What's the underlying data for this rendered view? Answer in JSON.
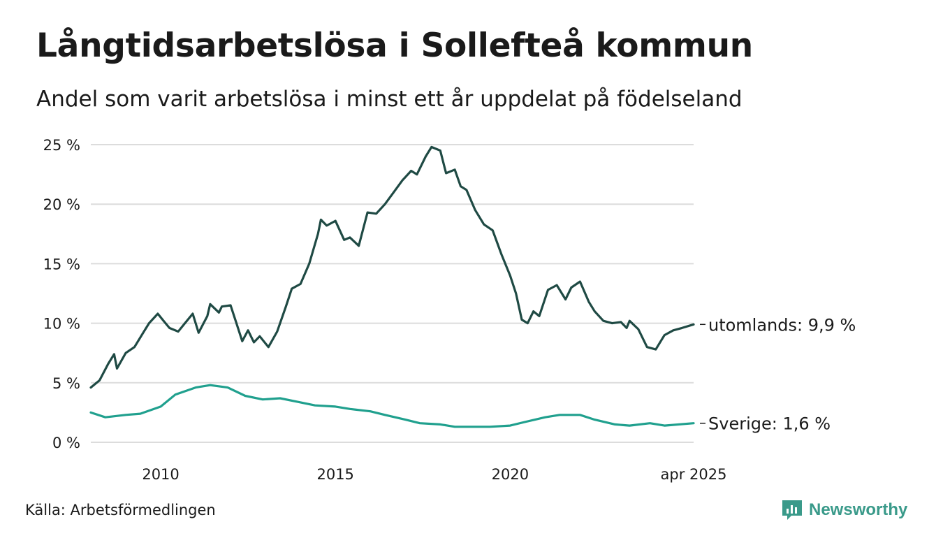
{
  "title": "Långtidsarbetslösa i Sollefteå kommun",
  "subtitle": "Andel som varit arbetslösa i minst ett år uppdelat på födelseland",
  "source": "Källa: Arbetsförmedlingen",
  "brand": "Newsworthy",
  "colors": {
    "utomlands": "#1f4a44",
    "sverige": "#20a08e",
    "grid": "#dcdcdc",
    "brand": "#3a9a8a"
  },
  "chart_data": {
    "type": "line",
    "title": "Långtidsarbetslösa i Sollefteå kommun",
    "xlabel": "",
    "ylabel": "",
    "x_range": [
      "2008-01",
      "2025-04"
    ],
    "ylim": [
      0,
      25
    ],
    "y_ticks": [
      0,
      5,
      10,
      15,
      20,
      25
    ],
    "y_tick_labels": [
      "0 %",
      "5 %",
      "10 %",
      "15 %",
      "20 %",
      "25 %"
    ],
    "x_ticks": [
      "2010-01",
      "2015-01",
      "2020-01",
      "2025-04"
    ],
    "x_tick_labels": [
      "2010",
      "2015",
      "2020",
      "apr 2025"
    ],
    "grid": "horizontal",
    "series": [
      {
        "name": "utomlands",
        "end_label": "utomlands: 9,9 %",
        "points": [
          [
            "2008-01",
            4.6
          ],
          [
            "2008-04",
            5.2
          ],
          [
            "2008-07",
            6.6
          ],
          [
            "2008-09",
            7.4
          ],
          [
            "2008-10",
            6.2
          ],
          [
            "2009-01",
            7.5
          ],
          [
            "2009-04",
            8.0
          ],
          [
            "2009-07",
            9.2
          ],
          [
            "2009-09",
            10.0
          ],
          [
            "2009-12",
            10.8
          ],
          [
            "2010-02",
            10.2
          ],
          [
            "2010-04",
            9.6
          ],
          [
            "2010-07",
            9.3
          ],
          [
            "2010-09",
            9.9
          ],
          [
            "2010-12",
            10.8
          ],
          [
            "2011-02",
            9.2
          ],
          [
            "2011-05",
            10.6
          ],
          [
            "2011-06",
            11.6
          ],
          [
            "2011-09",
            10.9
          ],
          [
            "2011-10",
            11.4
          ],
          [
            "2012-01",
            11.5
          ],
          [
            "2012-03",
            10.0
          ],
          [
            "2012-05",
            8.5
          ],
          [
            "2012-07",
            9.4
          ],
          [
            "2012-09",
            8.4
          ],
          [
            "2012-11",
            8.9
          ],
          [
            "2013-02",
            8.0
          ],
          [
            "2013-05",
            9.3
          ],
          [
            "2013-08",
            11.4
          ],
          [
            "2013-10",
            12.9
          ],
          [
            "2014-01",
            13.3
          ],
          [
            "2014-04",
            15.0
          ],
          [
            "2014-07",
            17.5
          ],
          [
            "2014-08",
            18.7
          ],
          [
            "2014-10",
            18.2
          ],
          [
            "2015-01",
            18.6
          ],
          [
            "2015-04",
            17.0
          ],
          [
            "2015-06",
            17.2
          ],
          [
            "2015-09",
            16.5
          ],
          [
            "2015-12",
            19.3
          ],
          [
            "2016-03",
            19.2
          ],
          [
            "2016-06",
            20.0
          ],
          [
            "2016-09",
            21.0
          ],
          [
            "2016-12",
            22.0
          ],
          [
            "2017-03",
            22.8
          ],
          [
            "2017-05",
            22.5
          ],
          [
            "2017-08",
            24.0
          ],
          [
            "2017-10",
            24.8
          ],
          [
            "2018-01",
            24.5
          ],
          [
            "2018-03",
            22.6
          ],
          [
            "2018-06",
            22.9
          ],
          [
            "2018-08",
            21.5
          ],
          [
            "2018-10",
            21.2
          ],
          [
            "2019-01",
            19.5
          ],
          [
            "2019-04",
            18.3
          ],
          [
            "2019-07",
            17.8
          ],
          [
            "2019-10",
            15.8
          ],
          [
            "2020-01",
            14.0
          ],
          [
            "2020-03",
            12.5
          ],
          [
            "2020-05",
            10.3
          ],
          [
            "2020-07",
            10.0
          ],
          [
            "2020-09",
            11.0
          ],
          [
            "2020-11",
            10.6
          ],
          [
            "2021-02",
            12.8
          ],
          [
            "2021-05",
            13.2
          ],
          [
            "2021-08",
            12.0
          ],
          [
            "2021-10",
            13.0
          ],
          [
            "2022-01",
            13.5
          ],
          [
            "2022-04",
            11.8
          ],
          [
            "2022-06",
            11.0
          ],
          [
            "2022-09",
            10.2
          ],
          [
            "2022-12",
            10.0
          ],
          [
            "2023-03",
            10.1
          ],
          [
            "2023-05",
            9.6
          ],
          [
            "2023-06",
            10.2
          ],
          [
            "2023-09",
            9.5
          ],
          [
            "2023-12",
            8.0
          ],
          [
            "2024-03",
            7.8
          ],
          [
            "2024-06",
            9.0
          ],
          [
            "2024-09",
            9.4
          ],
          [
            "2024-12",
            9.6
          ],
          [
            "2025-04",
            9.9
          ]
        ]
      },
      {
        "name": "Sverige",
        "end_label": "Sverige: 1,6 %",
        "points": [
          [
            "2008-01",
            2.5
          ],
          [
            "2008-06",
            2.1
          ],
          [
            "2009-01",
            2.3
          ],
          [
            "2009-06",
            2.4
          ],
          [
            "2010-01",
            3.0
          ],
          [
            "2010-06",
            4.0
          ],
          [
            "2011-01",
            4.6
          ],
          [
            "2011-06",
            4.8
          ],
          [
            "2011-12",
            4.6
          ],
          [
            "2012-06",
            3.9
          ],
          [
            "2012-12",
            3.6
          ],
          [
            "2013-06",
            3.7
          ],
          [
            "2013-12",
            3.4
          ],
          [
            "2014-06",
            3.1
          ],
          [
            "2015-01",
            3.0
          ],
          [
            "2015-06",
            2.8
          ],
          [
            "2016-01",
            2.6
          ],
          [
            "2016-06",
            2.3
          ],
          [
            "2017-01",
            1.9
          ],
          [
            "2017-06",
            1.6
          ],
          [
            "2018-01",
            1.5
          ],
          [
            "2018-06",
            1.3
          ],
          [
            "2019-01",
            1.3
          ],
          [
            "2019-06",
            1.3
          ],
          [
            "2020-01",
            1.4
          ],
          [
            "2020-06",
            1.7
          ],
          [
            "2021-01",
            2.1
          ],
          [
            "2021-06",
            2.3
          ],
          [
            "2022-01",
            2.3
          ],
          [
            "2022-06",
            1.9
          ],
          [
            "2023-01",
            1.5
          ],
          [
            "2023-06",
            1.4
          ],
          [
            "2024-01",
            1.6
          ],
          [
            "2024-06",
            1.4
          ],
          [
            "2025-04",
            1.6
          ]
        ]
      }
    ]
  }
}
